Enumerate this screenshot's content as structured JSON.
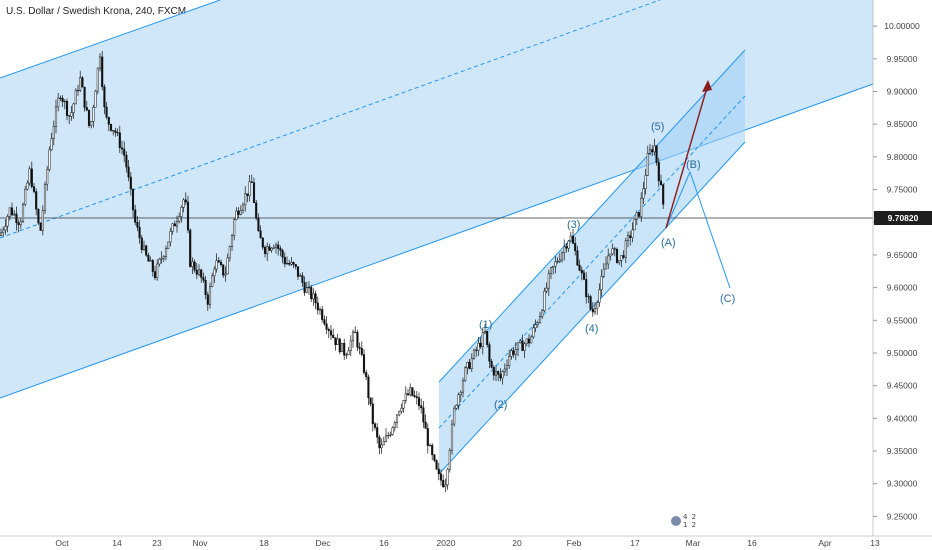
{
  "header": {
    "title": "U.S. Dollar / Swedish Krona, 240, FXCM"
  },
  "badge": {
    "numbers": "4 2 1 2"
  },
  "chart_data": {
    "type": "candlestick",
    "title": "U.S. Dollar / Swedish Krona, 240, FXCM",
    "ylim": [
      9.22,
      10.04
    ],
    "price_axis_ticks": [
      "10.00000",
      "9.95000",
      "9.90000",
      "9.85000",
      "9.80000",
      "9.75000",
      "9.70000",
      "9.65000",
      "9.60000",
      "9.55000",
      "9.50000",
      "9.45000",
      "9.40000",
      "9.35000",
      "9.30000",
      "9.25000"
    ],
    "last_price": "9.70820",
    "time_axis_ticks": [
      "Oct",
      "14",
      "23",
      "Nov",
      "18",
      "Dec",
      "16",
      "2020",
      "20",
      "Feb",
      "17",
      "Mar",
      "16",
      "Apr",
      "13"
    ],
    "price_path": [
      [
        0,
        9.68
      ],
      [
        10,
        9.72
      ],
      [
        20,
        9.7
      ],
      [
        30,
        9.78
      ],
      [
        40,
        9.68
      ],
      [
        50,
        9.82
      ],
      [
        60,
        9.9
      ],
      [
        70,
        9.86
      ],
      [
        80,
        9.92
      ],
      [
        90,
        9.84
      ],
      [
        100,
        9.96
      ],
      [
        105,
        9.86
      ],
      [
        115,
        9.84
      ],
      [
        125,
        9.8
      ],
      [
        135,
        9.7
      ],
      [
        145,
        9.65
      ],
      [
        155,
        9.62
      ],
      [
        165,
        9.66
      ],
      [
        175,
        9.7
      ],
      [
        185,
        9.74
      ],
      [
        190,
        9.64
      ],
      [
        200,
        9.62
      ],
      [
        208,
        9.58
      ],
      [
        215,
        9.64
      ],
      [
        225,
        9.62
      ],
      [
        235,
        9.71
      ],
      [
        245,
        9.74
      ],
      [
        252,
        9.76
      ],
      [
        258,
        9.68
      ],
      [
        265,
        9.66
      ],
      [
        275,
        9.67
      ],
      [
        285,
        9.64
      ],
      [
        295,
        9.63
      ],
      [
        305,
        9.6
      ],
      [
        315,
        9.58
      ],
      [
        325,
        9.55
      ],
      [
        335,
        9.52
      ],
      [
        345,
        9.5
      ],
      [
        355,
        9.53
      ],
      [
        365,
        9.47
      ],
      [
        372,
        9.4
      ],
      [
        380,
        9.35
      ],
      [
        390,
        9.38
      ],
      [
        400,
        9.42
      ],
      [
        410,
        9.44
      ],
      [
        420,
        9.42
      ],
      [
        430,
        9.35
      ],
      [
        438,
        9.31
      ],
      [
        445,
        9.3
      ],
      [
        450,
        9.36
      ],
      [
        455,
        9.42
      ],
      [
        465,
        9.47
      ],
      [
        475,
        9.5
      ],
      [
        485,
        9.53
      ],
      [
        490,
        9.48
      ],
      [
        500,
        9.46
      ],
      [
        510,
        9.5
      ],
      [
        520,
        9.51
      ],
      [
        530,
        9.52
      ],
      [
        540,
        9.56
      ],
      [
        550,
        9.62
      ],
      [
        560,
        9.65
      ],
      [
        570,
        9.68
      ],
      [
        578,
        9.64
      ],
      [
        585,
        9.6
      ],
      [
        592,
        9.56
      ],
      [
        600,
        9.6
      ],
      [
        610,
        9.66
      ],
      [
        620,
        9.64
      ],
      [
        630,
        9.68
      ],
      [
        640,
        9.72
      ],
      [
        648,
        9.8
      ],
      [
        654,
        9.82
      ],
      [
        660,
        9.76
      ],
      [
        665,
        9.71
      ]
    ],
    "wave_labels": [
      "(1)",
      "(2)",
      "(3)",
      "(4)",
      "(5)",
      "(A)",
      "(B)",
      "(C)"
    ]
  }
}
